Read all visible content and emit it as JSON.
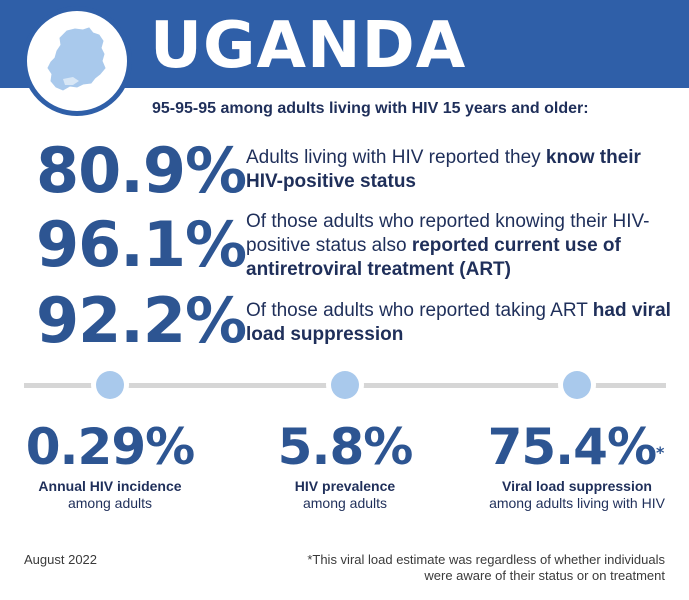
{
  "header": {
    "title": "UGANDA",
    "subtitle": "95-95-95 among adults living with HIV 15 years and older:"
  },
  "colors": {
    "banner": "#2f5fa8",
    "accent": "#2d5592",
    "dot": "#a9c9ec",
    "map": "#a9c9ec"
  },
  "icons": {
    "country_map": "uganda-map-icon"
  },
  "cascade": [
    {
      "value": "80.9%",
      "text_pre": "Adults living with HIV reported they ",
      "text_bold": "know their HIV-positive status",
      "text_post": ""
    },
    {
      "value": "96.1%",
      "text_pre": "Of those adults who reported knowing their HIV-positive status also ",
      "text_bold": "reported current use of antiretroviral treatment (ART)",
      "text_post": ""
    },
    {
      "value": "92.2%",
      "text_pre": "Of those adults who reported taking ART ",
      "text_bold": "had viral load suppression",
      "text_post": ""
    }
  ],
  "metrics": [
    {
      "value": "0.29%",
      "marker": "",
      "label_bold": "Annual HIV incidence",
      "label": "among adults"
    },
    {
      "value": "5.8%",
      "marker": "",
      "label_bold": "HIV prevalence",
      "label": "among adults"
    },
    {
      "value": "75.4%",
      "marker": "*",
      "label_bold": "Viral load suppression",
      "label": "among adults living with HIV"
    }
  ],
  "footer": {
    "date": "August 2022",
    "note": "*This viral load estimate was regardless of whether individuals were aware of their status or on treatment"
  }
}
